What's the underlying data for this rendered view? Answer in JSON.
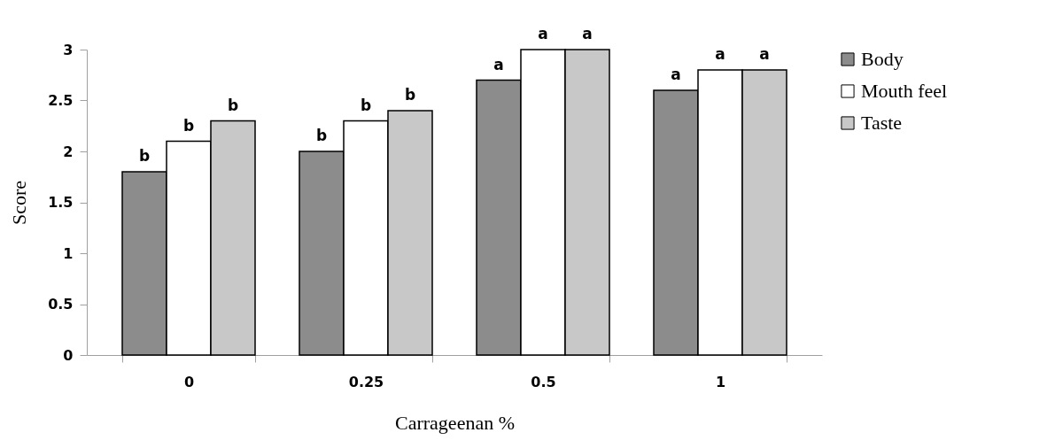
{
  "chart_data": {
    "type": "bar",
    "xlabel": "Carrageenan %",
    "ylabel": "Score",
    "categories": [
      "0",
      "0.25",
      "0.5",
      "1"
    ],
    "series": [
      {
        "name": "Body",
        "color": "#8c8c8c",
        "values": [
          1.8,
          2.0,
          2.7,
          2.6
        ],
        "value_labels": [
          "b",
          "b",
          "a",
          "a"
        ]
      },
      {
        "name": "Mouth feel",
        "color": "#ffffff",
        "values": [
          2.1,
          2.3,
          3.0,
          2.8
        ],
        "value_labels": [
          "b",
          "b",
          "a",
          "a"
        ]
      },
      {
        "name": "Taste",
        "color": "#c8c8c8",
        "values": [
          2.3,
          2.4,
          3.0,
          2.8
        ],
        "value_labels": [
          "b",
          "b",
          "a",
          "a"
        ]
      }
    ],
    "ylim": [
      0,
      3
    ],
    "yticks": [
      0,
      0.5,
      1,
      1.5,
      2,
      2.5,
      3
    ],
    "grid": false,
    "legend": "right"
  }
}
